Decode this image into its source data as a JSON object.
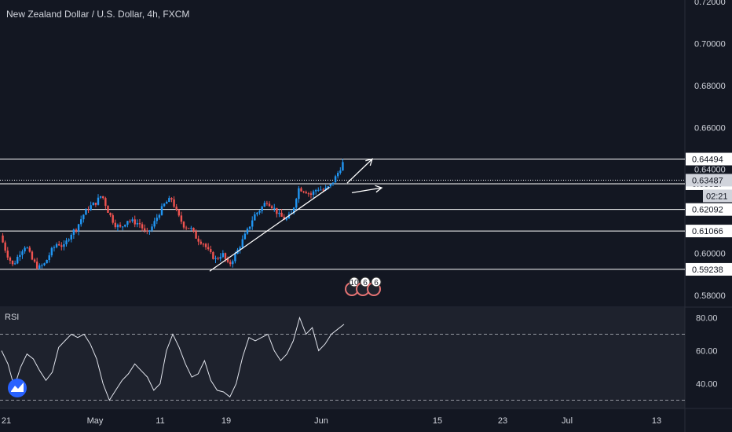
{
  "chart_data": {
    "type": "candlestick",
    "title": "New Zealand Dollar / U.S. Dollar, 4h, FXCM",
    "price_axis": {
      "ticks": [
        "0.72000",
        "0.70000",
        "0.68000",
        "0.66000",
        "0.64000",
        "0.60000",
        "0.58000"
      ],
      "tick_values": [
        0.72,
        0.7,
        0.68,
        0.66,
        0.64,
        0.6,
        0.58
      ],
      "range": [
        0.575,
        0.72
      ]
    },
    "levels": [
      {
        "label": "0.64494",
        "value": 0.64494
      },
      {
        "label": "0.63317",
        "value": 0.63317
      },
      {
        "label": "0.62092",
        "value": 0.62092
      },
      {
        "label": "0.61066",
        "value": 0.61066
      },
      {
        "label": "0.59238",
        "value": 0.59238
      }
    ],
    "current_price": {
      "label": "0.63487",
      "value": 0.63487
    },
    "countdown": "02:21",
    "price_path": [
      [
        0.6085,
        0.6,
        0.594,
        0.6,
        0.604,
        0.597,
        0.593,
        0.595,
        0.601,
        0.605,
        0.603,
        0.609,
        0.612,
        0.618,
        0.622,
        0.624,
        0.628,
        0.62,
        0.614,
        0.612,
        0.616,
        0.615,
        0.614,
        0.609,
        0.613,
        0.619,
        0.624,
        0.626,
        0.618,
        0.613,
        0.612,
        0.607,
        0.605,
        0.6,
        0.597,
        0.6,
        0.594,
        0.599,
        0.605,
        0.611,
        0.618,
        0.621,
        0.625,
        0.622,
        0.618,
        0.616,
        0.619,
        0.631,
        0.63,
        0.628,
        0.631,
        0.63,
        0.632,
        0.637,
        0.643
      ]
    ],
    "trendline": {
      "start": {
        "x": "2020-05-17",
        "y": 0.5915
      },
      "end": {
        "x": "2020-06-02",
        "y": 0.6315
      }
    },
    "projections": [
      {
        "direction": "up",
        "from": 0.6335,
        "to": 0.645
      },
      {
        "direction": "down",
        "from": 0.633,
        "to": 0.6316
      }
    ],
    "time_axis": {
      "labels": [
        "21",
        "May",
        "11",
        "19",
        "Jun",
        "15",
        "23",
        "Jul",
        "13"
      ],
      "dates": [
        "2020-04-21",
        "2020-05-01",
        "2020-05-11",
        "2020-05-19",
        "2020-06-01",
        "2020-06-15",
        "2020-06-23",
        "2020-07-01",
        "2020-07-13"
      ]
    },
    "event_markers": [
      "10",
      "6",
      "6"
    ],
    "rsi": {
      "label": "RSI",
      "ticks": [
        "80.00",
        "60.00",
        "40.00"
      ],
      "tick_values": [
        80,
        60,
        40
      ],
      "bands": [
        70,
        30
      ],
      "range": [
        25,
        85
      ],
      "values": [
        60,
        52,
        38,
        50,
        58,
        55,
        48,
        42,
        47,
        62,
        66,
        70,
        68,
        70,
        64,
        55,
        40,
        30,
        36,
        42,
        46,
        52,
        48,
        44,
        36,
        40,
        60,
        70,
        62,
        52,
        44,
        46,
        54,
        42,
        36,
        35,
        32,
        40,
        56,
        68,
        66,
        68,
        70,
        60,
        54,
        58,
        66,
        80,
        70,
        74,
        60,
        64,
        70,
        73,
        76
      ]
    }
  },
  "colors": {
    "background": "#131722",
    "rsi_background": "#1e222d",
    "up_candle": "#2196f3",
    "down_candle": "#ef5350",
    "line": "#ffffff",
    "text": "#d1d4dc",
    "logo": "#2962ff"
  },
  "icons": [
    "tradingview-logo-icon"
  ]
}
